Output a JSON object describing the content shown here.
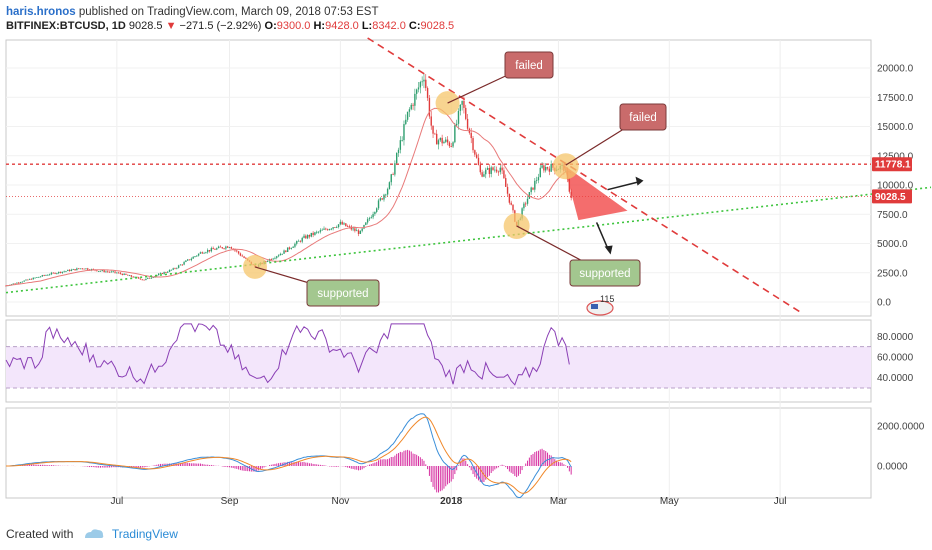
{
  "header": {
    "author": "haris.hronos",
    "published": "published on TradingView.com, March 09, 2018 07:53 EST"
  },
  "symbol_line": {
    "symbol": "BITFINEX:BTCUSD, 1D",
    "last": "9028.5",
    "change": "−271.5 (−2.92%)",
    "o_label": "O:",
    "o": "9300.0",
    "h_label": "H:",
    "h": "9428.0",
    "l_label": "L:",
    "l": "8342.0",
    "c_label": "C:",
    "c": "9028.5"
  },
  "footer": {
    "created_with": "Created with",
    "brand": "TradingView"
  },
  "colors": {
    "up": "#2e9e6e",
    "down": "#e03b3b",
    "ma": "#e87a7a",
    "rsi": "#8a3fb5",
    "rsi_band": "#f3e6fb",
    "macd": "#3b8fd9",
    "signal": "#f0882a",
    "hist": "#d62fa0",
    "support": "#3ec43e",
    "resistance": "#e03b3b",
    "callout_red": "#c96b6b",
    "callout_green": "#a3c78f",
    "highlight": "#f5c66b"
  },
  "chart_data": {
    "type": "candlestick",
    "x_labels": [
      "Jul",
      "Sep",
      "Nov",
      "2018",
      "Mar",
      "May",
      "Jul"
    ],
    "y_ticks": [
      "20000.0",
      "17500.0",
      "15000.0",
      "12500.0",
      "10000.0",
      "7500.0",
      "5000.0",
      "2500.0",
      "0.0"
    ],
    "price_series": [
      [
        "2017-05-01",
        1400
      ],
      [
        "2017-05-25",
        2400
      ],
      [
        "2017-06-12",
        2900
      ],
      [
        "2017-06-20",
        2700
      ],
      [
        "2017-07-01",
        2500
      ],
      [
        "2017-07-16",
        1900
      ],
      [
        "2017-08-01",
        2800
      ],
      [
        "2017-08-17",
        4300
      ],
      [
        "2017-09-01",
        4800
      ],
      [
        "2017-09-15",
        3000
      ],
      [
        "2017-10-01",
        4300
      ],
      [
        "2017-10-12",
        5500
      ],
      [
        "2017-11-01",
        6700
      ],
      [
        "2017-11-12",
        5900
      ],
      [
        "2017-11-28",
        10000
      ],
      [
        "2017-12-08",
        16000
      ],
      [
        "2017-12-17",
        19500
      ],
      [
        "2017-12-22",
        14000
      ],
      [
        "2018-01-01",
        13500
      ],
      [
        "2018-01-07",
        17000
      ],
      [
        "2018-01-17",
        11000
      ],
      [
        "2018-01-28",
        11500
      ],
      [
        "2018-02-06",
        6500
      ],
      [
        "2018-02-10",
        8200
      ],
      [
        "2018-02-20",
        11500
      ],
      [
        "2018-03-04",
        11500
      ],
      [
        "2018-03-08",
        9028.5
      ]
    ],
    "horizontal_lines": [
      {
        "value": 11778.1,
        "label": "11778.1"
      },
      {
        "value": 9028.5,
        "label": "9028.5"
      }
    ],
    "annotations": [
      "failed",
      "failed",
      "supported",
      "supported"
    ],
    "news_badge": "115",
    "rsi": {
      "y_ticks": [
        "80.0000",
        "60.0000",
        "40.0000"
      ],
      "band": [
        30,
        70
      ]
    },
    "macd": {
      "y_ticks": [
        "2000.0000",
        "0.0000"
      ]
    }
  }
}
